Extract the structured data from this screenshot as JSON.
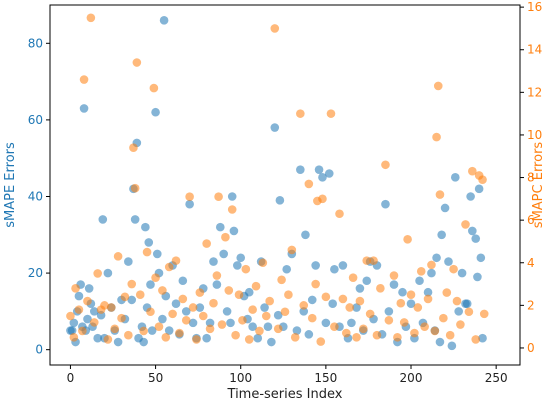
{
  "chart_data": {
    "type": "scatter",
    "xlabel": "Time-series Index",
    "ylabel": "sMAPE Errors",
    "y2label": "sMAPC Errors",
    "xlim": [
      -12,
      264
    ],
    "xticks": [
      0,
      50,
      100,
      150,
      200,
      250
    ],
    "ylim": [
      -4,
      90
    ],
    "yticks": [
      0,
      20,
      40,
      60,
      80
    ],
    "y2lim": [
      -0.8,
      16.1
    ],
    "y2ticks": [
      0,
      2,
      4,
      6,
      8,
      10,
      12,
      14,
      16
    ],
    "ylabel_color": "#1f77b4",
    "y2label_color": "#ff7f0e",
    "series": [
      {
        "color": "#1f77b4",
        "x": [
          0,
          1,
          2,
          3,
          4,
          5,
          6,
          7,
          8,
          9,
          10,
          11,
          12,
          13,
          14,
          16,
          18,
          19,
          20,
          22,
          24,
          26,
          28,
          30,
          32,
          34,
          36,
          37,
          38,
          39,
          40,
          42,
          43,
          44,
          45,
          46,
          47,
          48,
          50,
          51,
          52,
          54,
          55,
          56,
          58,
          60,
          62,
          64,
          66,
          68,
          70,
          72,
          74,
          76,
          78,
          80,
          82,
          84,
          86,
          88,
          90,
          92,
          94,
          95,
          96,
          98,
          100,
          102,
          104,
          105,
          107,
          110,
          112,
          114,
          116,
          118,
          120,
          122,
          123,
          125,
          127,
          130,
          133,
          135,
          137,
          138,
          140,
          142,
          144,
          146,
          148,
          150,
          152,
          154,
          155,
          158,
          160,
          163,
          165,
          168,
          170,
          172,
          174,
          176,
          178,
          180,
          183,
          185,
          187,
          190,
          192,
          195,
          197,
          200,
          202,
          205,
          207,
          210,
          212,
          214,
          215,
          217,
          218,
          220,
          222,
          224,
          226,
          228,
          230,
          232,
          233,
          235,
          236,
          238,
          239,
          240,
          241,
          242
        ],
        "values": [
          5,
          5,
          7,
          2,
          10,
          14,
          17,
          6,
          63,
          5,
          8,
          16,
          12,
          6,
          10,
          3,
          9,
          34,
          3,
          20,
          11,
          5,
          2,
          13,
          8,
          23,
          13,
          42,
          34,
          54,
          3,
          6,
          2,
          32,
          11,
          28,
          17,
          5,
          62,
          25,
          20,
          8,
          86,
          14,
          5,
          22,
          12,
          4,
          18,
          10,
          38,
          7,
          3,
          11,
          16,
          3,
          7,
          23,
          17,
          32,
          25,
          10,
          7,
          40,
          31,
          22,
          24,
          14,
          8,
          15,
          6,
          3,
          23,
          11,
          6,
          2,
          58,
          9,
          39,
          6,
          21,
          25,
          5,
          47,
          10,
          30,
          4,
          13,
          22,
          47,
          45,
          7,
          46,
          12,
          21,
          6,
          22,
          3,
          7,
          11,
          16,
          5,
          18,
          23,
          8,
          22,
          4,
          38,
          10,
          17,
          2,
          15,
          6,
          12,
          3,
          18,
          7,
          15,
          20,
          5,
          24,
          2,
          30,
          37,
          23,
          1,
          45,
          10,
          20,
          12,
          12,
          40,
          31,
          29,
          19,
          42,
          24,
          3
        ]
      },
      {
        "color": "#ff7f0e",
        "axis": "y2",
        "x": [
          0,
          2,
          3,
          5,
          7,
          8,
          10,
          12,
          14,
          16,
          18,
          20,
          22,
          24,
          26,
          28,
          30,
          32,
          34,
          36,
          37,
          38,
          39,
          41,
          43,
          45,
          47,
          49,
          50,
          52,
          54,
          56,
          58,
          60,
          62,
          64,
          66,
          68,
          70,
          72,
          74,
          76,
          78,
          80,
          82,
          84,
          86,
          87,
          89,
          91,
          93,
          95,
          97,
          99,
          101,
          103,
          105,
          107,
          109,
          111,
          113,
          115,
          117,
          120,
          122,
          124,
          126,
          128,
          130,
          132,
          135,
          137,
          140,
          142,
          144,
          145,
          147,
          148,
          150,
          153,
          155,
          158,
          160,
          162,
          164,
          166,
          168,
          170,
          172,
          174,
          176,
          178,
          180,
          182,
          185,
          187,
          190,
          192,
          194,
          196,
          198,
          200,
          202,
          204,
          206,
          208,
          210,
          212,
          214,
          215,
          216,
          217,
          219,
          221,
          223,
          225,
          227,
          229,
          232,
          234,
          236,
          238,
          240,
          242,
          243
        ],
        "values": [
          1.5,
          0.5,
          2.8,
          1.8,
          0.8,
          12.6,
          2.2,
          15.5,
          1.2,
          3.5,
          1.8,
          2.0,
          0.4,
          1.9,
          0.9,
          4.3,
          1.4,
          2.4,
          0.6,
          3.0,
          9.4,
          7.5,
          13.4,
          2.5,
          0.8,
          4.5,
          1.7,
          12.2,
          3.3,
          1.0,
          2.7,
          0.5,
          3.8,
          1.6,
          4.1,
          0.7,
          2.3,
          1.3,
          7.1,
          1.9,
          0.4,
          2.6,
          1.5,
          4.9,
          0.9,
          2.1,
          3.4,
          7.1,
          1.1,
          5.2,
          2.7,
          6.5,
          0.6,
          2.5,
          1.3,
          3.7,
          0.4,
          1.8,
          2.9,
          0.8,
          4.0,
          1.5,
          2.2,
          15.0,
          0.9,
          3.2,
          1.7,
          2.5,
          4.6,
          0.5,
          11.0,
          2.0,
          7.7,
          1.4,
          3.0,
          6.9,
          0.3,
          7.0,
          2.4,
          11.0,
          1.0,
          6.3,
          2.3,
          0.7,
          1.9,
          3.3,
          0.5,
          2.2,
          0.9,
          4.1,
          1.6,
          4.1,
          0.6,
          2.8,
          8.6,
          1.3,
          3.4,
          0.5,
          2.1,
          1.2,
          5.1,
          2.5,
          0.7,
          1.9,
          3.6,
          1.0,
          2.3,
          3.9,
          0.8,
          9.9,
          12.3,
          7.2,
          1.4,
          2.6,
          0.6,
          3.7,
          2.2,
          1.1,
          5.8,
          1.7,
          8.3,
          0.4,
          8.1,
          7.9,
          1.6
        ]
      }
    ]
  }
}
